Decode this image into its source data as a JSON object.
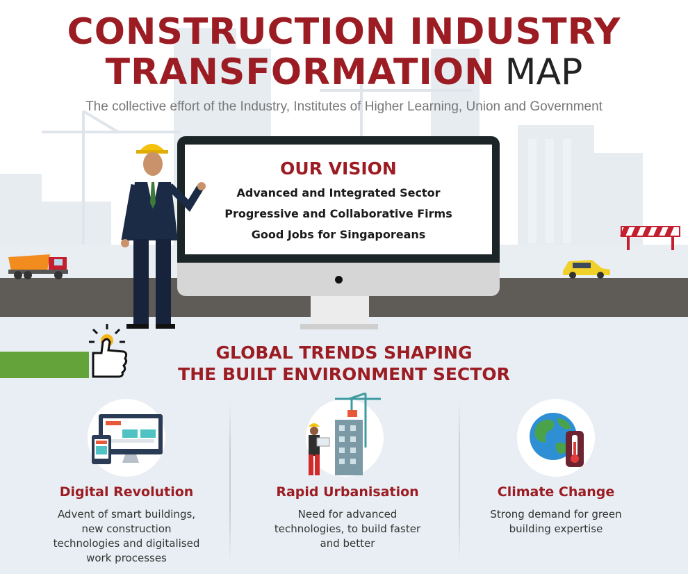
{
  "header": {
    "title_line1": "CONSTRUCTION INDUSTRY",
    "title_line2": "TRANSFORMATION",
    "title_map": "MAP",
    "subtitle": "The collective effort of the Industry, Institutes of Higher Learning, Union and Government"
  },
  "vision": {
    "title": "OUR VISION",
    "lines": [
      "Advanced and Integrated Sector",
      "Progressive and Collaborative Firms",
      "Good Jobs for Singaporeans"
    ]
  },
  "trends": {
    "title_line1": "GLOBAL TRENDS SHAPING",
    "title_line2": "THE BUILT ENVIRONMENT SECTOR",
    "items": [
      {
        "title": "Digital Revolution",
        "desc_lines": [
          "Advent of smart buildings,",
          "new construction",
          "technologies and digitalised",
          "work processes"
        ],
        "icon": "devices-icon"
      },
      {
        "title": "Rapid Urbanisation",
        "desc_lines": [
          "Need for advanced",
          "technologies, to build faster",
          "and better"
        ],
        "icon": "crane-building-icon"
      },
      {
        "title": "Climate Change",
        "desc_lines": [
          "Strong demand for green",
          "building expertise"
        ],
        "icon": "globe-thermometer-icon"
      }
    ]
  },
  "colors": {
    "brand_red": "#9b1c22",
    "road": "#5f5b57",
    "accent_green": "#63a33a",
    "light_bg": "#e8eef3"
  }
}
